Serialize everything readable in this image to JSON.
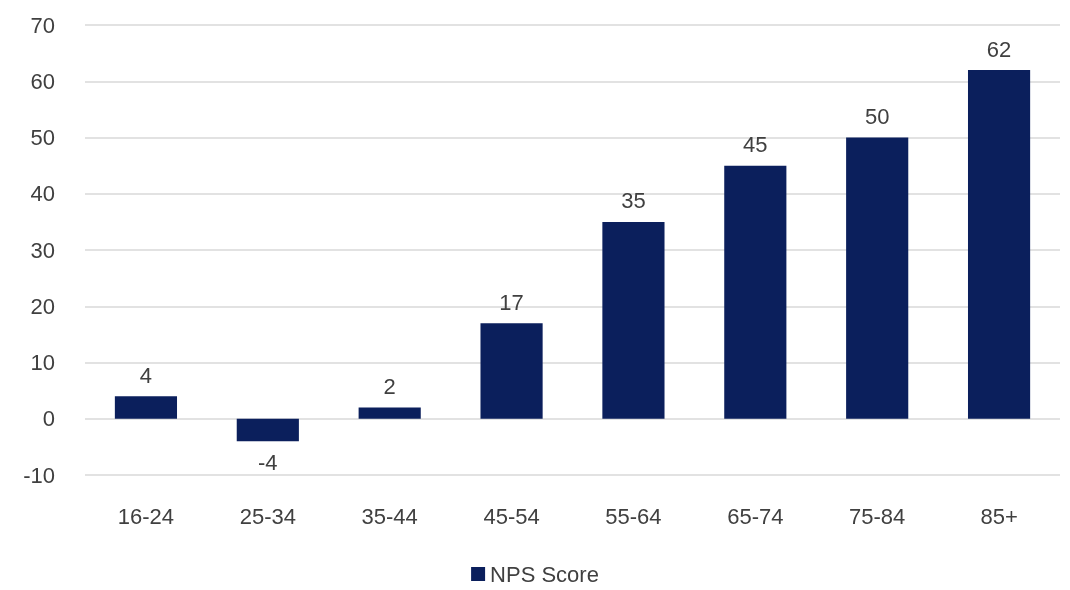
{
  "chart_data": {
    "type": "bar",
    "categories": [
      "16-24",
      "25-34",
      "35-44",
      "45-54",
      "55-64",
      "65-74",
      "75-84",
      "85+"
    ],
    "series": [
      {
        "name": "NPS Score",
        "color": "#0b1f5c",
        "values": [
          4,
          -4,
          2,
          17,
          35,
          45,
          50,
          62
        ]
      }
    ],
    "ylim": [
      -10,
      70
    ],
    "yticks": [
      -10,
      0,
      10,
      20,
      30,
      40,
      50,
      60,
      70
    ],
    "grid": "y",
    "legend": "bottom",
    "data_labels": true
  }
}
